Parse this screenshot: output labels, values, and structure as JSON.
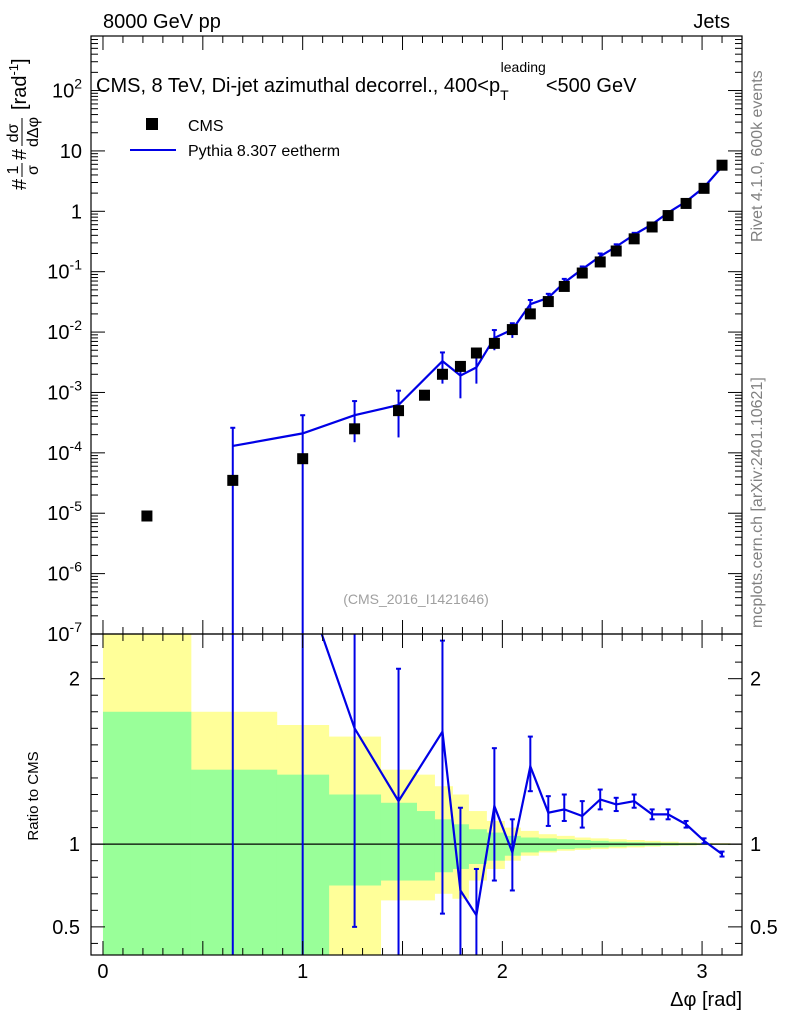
{
  "header": {
    "left": "8000 GeV pp",
    "right": "Jets",
    "side_rivet": "Rivet 4.1.0,  600k events",
    "side_mcplots": "mcplots.cern.ch [arXiv:2401.10621]",
    "analysis_tag": "(CMS_2016_I1421646)"
  },
  "colors": {
    "data": "#000000",
    "mc": "#0000e6",
    "band_inner": "#99ff99",
    "band_outer": "#ffff99"
  },
  "chart_data": {
    "type": "scatter",
    "title_parts": {
      "prefix": "CMS, 8 TeV, Di-jet azimuthal decorrel., 400<p",
      "sub": "T",
      "sup": "leading",
      "suffix": "<500 GeV"
    },
    "ylabel_main": "#1/σ #dσ/dΔφ [rad^-1]",
    "ylabel_main_parts": {
      "hash1": "#",
      "frac1_num": "1",
      "frac1_den": "σ",
      "hash2": "#",
      "frac2_num": "dσ",
      "frac2_den": "dΔφ",
      "unit": "[rad",
      "unit_exp": "-1",
      "unit_close": "]"
    },
    "ylabel_ratio": "Ratio to CMS",
    "xlabel": "Δφ [rad]",
    "xlim": [
      -0.06,
      3.2
    ],
    "ylim_main": [
      1e-07,
      800
    ],
    "ylim_ratio": [
      0.33,
      2.27
    ],
    "x_ticks": [
      0,
      1,
      2,
      3
    ],
    "y_ticks_main": [
      {
        "base": "10",
        "exp": "-7",
        "value": 1e-07
      },
      {
        "base": "10",
        "exp": "-6",
        "value": 1e-06
      },
      {
        "base": "10",
        "exp": "-5",
        "value": 1e-05
      },
      {
        "base": "10",
        "exp": "-4",
        "value": 0.0001
      },
      {
        "base": "10",
        "exp": "-3",
        "value": 0.001
      },
      {
        "base": "10",
        "exp": "-2",
        "value": 0.01
      },
      {
        "base": "10",
        "exp": "-1",
        "value": 0.1
      },
      {
        "base": "1",
        "exp": "",
        "value": 1
      },
      {
        "base": "10",
        "exp": "",
        "value": 10
      },
      {
        "base": "10",
        "exp": "2",
        "value": 100
      }
    ],
    "y_ticks_ratio": [
      {
        "label": "0.5",
        "value": 0.5
      },
      {
        "label": "1",
        "value": 1
      },
      {
        "label": "2",
        "value": 2
      }
    ],
    "legend": [
      {
        "name": "CMS",
        "marker": "square"
      },
      {
        "name": "Pythia 8.307 eetherm",
        "marker": "line"
      }
    ],
    "series": [
      {
        "name": "CMS",
        "x": [
          0.22,
          0.65,
          1.0,
          1.26,
          1.48,
          1.61,
          1.7,
          1.79,
          1.87,
          1.96,
          2.05,
          2.14,
          2.23,
          2.31,
          2.4,
          2.49,
          2.57,
          2.66,
          2.75,
          2.83,
          2.92,
          3.01,
          3.1
        ],
        "y": [
          9e-06,
          3.5e-05,
          8e-05,
          0.00025,
          0.0005,
          0.0009,
          0.002,
          0.0027,
          0.0045,
          0.0065,
          0.011,
          0.02,
          0.032,
          0.057,
          0.095,
          0.145,
          0.22,
          0.35,
          0.55,
          0.85,
          1.35,
          2.4,
          5.8
        ]
      },
      {
        "name": "Pythia 8.307 eetherm",
        "x": [
          0.65,
          1.0,
          1.26,
          1.48,
          1.7,
          1.79,
          1.87,
          1.96,
          2.05,
          2.14,
          2.23,
          2.31,
          2.4,
          2.49,
          2.57,
          2.66,
          2.75,
          2.83,
          2.92,
          3.01,
          3.1
        ],
        "y": [
          0.00013,
          0.00021,
          0.00042,
          0.00062,
          0.0033,
          0.0019,
          0.0026,
          0.008,
          0.011,
          0.029,
          0.037,
          0.066,
          0.11,
          0.18,
          0.26,
          0.41,
          0.61,
          0.95,
          1.45,
          2.5,
          5.5
        ],
        "y_err_low": [
          0.00013,
          0.00021,
          0.00027,
          0.00044,
          0.0019,
          0.0011,
          0.0012,
          0.003,
          0.003,
          0.008,
          0.007,
          0.01,
          0.012,
          0.02,
          0.024,
          0.03,
          0.04,
          0.05,
          0.06,
          0.09,
          0.12
        ],
        "y_err_high": [
          0.00013,
          0.00021,
          0.0003,
          0.00045,
          0.0013,
          0.001,
          0.0016,
          0.0028,
          0.003,
          0.005,
          0.006,
          0.01,
          0.012,
          0.02,
          0.024,
          0.03,
          0.04,
          0.05,
          0.06,
          0.09,
          0.12
        ]
      }
    ],
    "ratio_series": {
      "name": "Pythia 8.307 eetherm / CMS",
      "x": [
        0.65,
        1.0,
        1.26,
        1.48,
        1.7,
        1.79,
        1.87,
        1.96,
        2.05,
        2.14,
        2.23,
        2.31,
        2.4,
        2.49,
        2.57,
        2.66,
        2.75,
        2.83,
        2.92,
        3.01,
        3.1
      ],
      "y": [
        3.6,
        2.6,
        1.7,
        1.26,
        1.68,
        0.72,
        0.57,
        1.23,
        0.95,
        1.47,
        1.19,
        1.21,
        1.17,
        1.27,
        1.24,
        1.26,
        1.18,
        1.18,
        1.12,
        1.02,
        0.94
      ],
      "y_err_low": [
        3.6,
        2.6,
        1.2,
        1.0,
        1.1,
        0.6,
        0.4,
        0.45,
        0.23,
        0.15,
        0.08,
        0.07,
        0.07,
        0.06,
        0.04,
        0.04,
        0.03,
        0.03,
        0.02,
        0.015,
        0.015
      ],
      "y_err_high": [
        3.6,
        2.6,
        1.2,
        0.8,
        0.55,
        0.5,
        0.28,
        0.35,
        0.2,
        0.18,
        0.1,
        0.09,
        0.09,
        0.06,
        0.04,
        0.04,
        0.03,
        0.03,
        0.02,
        0.015,
        0.015
      ]
    },
    "bands": {
      "edges": [
        0.0,
        0.44,
        0.87,
        1.13,
        1.39,
        1.57,
        1.66,
        1.75,
        1.83,
        1.92,
        2.01,
        2.09,
        2.18,
        2.27,
        2.36,
        2.44,
        2.53,
        2.62,
        2.71,
        2.79,
        2.88,
        2.97,
        3.05,
        3.14
      ],
      "inner_low": [
        0.33,
        0.33,
        0.33,
        0.75,
        0.78,
        0.78,
        0.83,
        0.85,
        0.88,
        0.9,
        0.93,
        0.95,
        0.96,
        0.97,
        0.975,
        0.98,
        0.985,
        0.988,
        0.99,
        0.992,
        0.994,
        0.995,
        0.996
      ],
      "inner_high": [
        1.8,
        1.45,
        1.42,
        1.3,
        1.25,
        1.2,
        1.15,
        1.12,
        1.09,
        1.07,
        1.05,
        1.04,
        1.035,
        1.03,
        1.025,
        1.02,
        1.015,
        1.012,
        1.01,
        1.008,
        1.006,
        1.005,
        1.004
      ],
      "outer_low": [
        0.33,
        0.65,
        0.65,
        0.33,
        0.66,
        0.66,
        0.7,
        0.67,
        0.78,
        0.85,
        0.9,
        0.93,
        0.95,
        0.96,
        0.965,
        0.97,
        0.975,
        0.98,
        0.985,
        0.99,
        0.992,
        0.994,
        0.996
      ],
      "outer_high": [
        2.27,
        1.8,
        1.72,
        1.65,
        1.45,
        1.42,
        1.35,
        1.3,
        1.2,
        1.14,
        1.1,
        1.08,
        1.06,
        1.05,
        1.04,
        1.035,
        1.03,
        1.025,
        1.02,
        1.015,
        1.01,
        1.008,
        1.006
      ]
    }
  }
}
